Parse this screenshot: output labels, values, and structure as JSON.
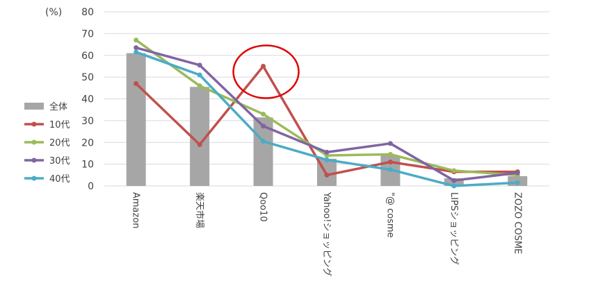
{
  "chart_data": {
    "type": "bar+line",
    "unit_label": "(%)",
    "ylim": [
      0,
      80
    ],
    "yticks": [
      0,
      10,
      20,
      30,
      40,
      50,
      60,
      70,
      80
    ],
    "grid": true,
    "legend_position": "left",
    "categories": [
      "Amazon",
      "楽天市場",
      "Qoo10",
      "Yahoo!ショッピング",
      "\"@ cosme",
      "LIPSショッピング",
      "ZOZO COSME"
    ],
    "bar_series": {
      "name": "全体",
      "color": "#a6a6a6",
      "values": [
        61,
        45.5,
        31.5,
        12.5,
        14,
        3.5,
        4.5
      ]
    },
    "line_series": [
      {
        "name": "10代",
        "color": "#c0504d",
        "values": [
          47,
          19,
          55,
          5,
          11,
          6.5,
          6.5
        ]
      },
      {
        "name": "20代",
        "color": "#9bbb59",
        "values": [
          67,
          46,
          33,
          14,
          14.5,
          7,
          5
        ]
      },
      {
        "name": "30代",
        "color": "#8064a2",
        "values": [
          63.5,
          55.5,
          27.5,
          15.5,
          19.5,
          2.5,
          6
        ]
      },
      {
        "name": "40代",
        "color": "#4bacc6",
        "values": [
          61.5,
          51,
          20.5,
          12,
          7.5,
          0,
          1.5
        ]
      }
    ],
    "highlight": {
      "shape": "ellipse",
      "category": "Qoo10",
      "color": "#e00000"
    }
  }
}
